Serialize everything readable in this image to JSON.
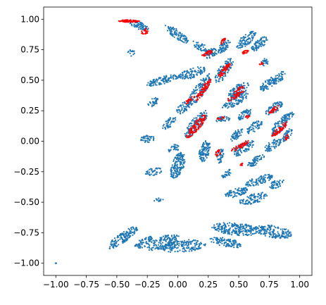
{
  "chart_data": {
    "type": "scatter",
    "title": "",
    "xlabel": "",
    "ylabel": "",
    "xlim": [
      -1.1,
      1.1
    ],
    "ylim": [
      -1.1,
      1.1
    ],
    "grid": false,
    "xticks": [
      -1.0,
      -0.75,
      -0.5,
      -0.25,
      0.0,
      0.25,
      0.5,
      0.75,
      1.0
    ],
    "xtick_labels": [
      "−1.00",
      "−0.75",
      "−0.50",
      "−0.25",
      "0.00",
      "0.25",
      "0.50",
      "0.75",
      "1.00"
    ],
    "yticks": [
      -1.0,
      -0.75,
      -0.5,
      -0.25,
      0.0,
      0.25,
      0.5,
      0.75,
      1.0
    ],
    "ytick_labels": [
      "−1.00",
      "−0.75",
      "−0.50",
      "−0.25",
      "0.00",
      "0.25",
      "0.50",
      "0.75",
      "1.00"
    ],
    "series": [
      {
        "color": "#1f77b4",
        "marker": "dot",
        "clusters": [
          {
            "c": [
              -0.32,
              0.95
            ],
            "a": [
              0.09,
              0.03
            ],
            "ang": -20,
            "n": 70
          },
          {
            "c": [
              -0.01,
              0.88
            ],
            "a": [
              0.12,
              0.035
            ],
            "ang": -35,
            "n": 90
          },
          {
            "c": [
              0.18,
              0.78
            ],
            "a": [
              0.07,
              0.03
            ],
            "ang": -30,
            "n": 40
          },
          {
            "c": [
              -0.38,
              0.72
            ],
            "a": [
              0.03,
              0.03
            ],
            "ang": 0,
            "n": 15
          },
          {
            "c": [
              0.27,
              0.72
            ],
            "a": [
              0.06,
              0.035
            ],
            "ang": 25,
            "n": 60
          },
          {
            "c": [
              0.38,
              0.78
            ],
            "a": [
              0.07,
              0.03
            ],
            "ang": 50,
            "n": 60
          },
          {
            "c": [
              0.56,
              0.83
            ],
            "a": [
              0.1,
              0.04
            ],
            "ang": 40,
            "n": 90
          },
          {
            "c": [
              0.67,
              0.8
            ],
            "a": [
              0.08,
              0.035
            ],
            "ang": 40,
            "n": 70
          },
          {
            "c": [
              0.71,
              0.65
            ],
            "a": [
              0.04,
              0.03
            ],
            "ang": 20,
            "n": 25
          },
          {
            "c": [
              -0.12,
              0.5
            ],
            "a": [
              0.14,
              0.03
            ],
            "ang": 15,
            "n": 110
          },
          {
            "c": [
              0.12,
              0.56
            ],
            "a": [
              0.12,
              0.04
            ],
            "ang": 20,
            "n": 110
          },
          {
            "c": [
              0.38,
              0.58
            ],
            "a": [
              0.12,
              0.045
            ],
            "ang": 55,
            "n": 100
          },
          {
            "c": [
              0.5,
              0.42
            ],
            "a": [
              0.1,
              0.045
            ],
            "ang": 35,
            "n": 90
          },
          {
            "c": [
              0.74,
              0.47
            ],
            "a": [
              0.08,
              0.035
            ],
            "ang": 40,
            "n": 70
          },
          {
            "c": [
              0.83,
              0.52
            ],
            "a": [
              0.07,
              0.03
            ],
            "ang": 45,
            "n": 55
          },
          {
            "c": [
              0.18,
              0.42
            ],
            "a": [
              0.16,
              0.045
            ],
            "ang": 55,
            "n": 150
          },
          {
            "c": [
              -0.2,
              0.32
            ],
            "a": [
              0.05,
              0.03
            ],
            "ang": 30,
            "n": 35
          },
          {
            "c": [
              0.05,
              0.28
            ],
            "a": [
              0.08,
              0.035
            ],
            "ang": 40,
            "n": 60
          },
          {
            "c": [
              0.47,
              0.33
            ],
            "a": [
              0.12,
              0.04
            ],
            "ang": 30,
            "n": 100
          },
          {
            "c": [
              0.37,
              0.18
            ],
            "a": [
              0.06,
              0.025
            ],
            "ang": 10,
            "n": 40
          },
          {
            "c": [
              0.55,
              0.22
            ],
            "a": [
              0.07,
              0.03
            ],
            "ang": 30,
            "n": 50
          },
          {
            "c": [
              0.79,
              0.27
            ],
            "a": [
              0.08,
              0.035
            ],
            "ang": 35,
            "n": 70
          },
          {
            "c": [
              0.9,
              0.2
            ],
            "a": [
              0.06,
              0.025
            ],
            "ang": 30,
            "n": 45
          },
          {
            "c": [
              -0.07,
              0.15
            ],
            "a": [
              0.07,
              0.03
            ],
            "ang": 45,
            "n": 50
          },
          {
            "c": [
              0.15,
              0.14
            ],
            "a": [
              0.14,
              0.045
            ],
            "ang": 50,
            "n": 140
          },
          {
            "c": [
              0.48,
              0.05
            ],
            "a": [
              0.07,
              0.03
            ],
            "ang": 45,
            "n": 50
          },
          {
            "c": [
              0.63,
              0.12
            ],
            "a": [
              0.08,
              0.035
            ],
            "ang": 40,
            "n": 60
          },
          {
            "c": [
              0.83,
              0.12
            ],
            "a": [
              0.09,
              0.04
            ],
            "ang": 45,
            "n": 80
          },
          {
            "c": [
              0.9,
              0.05
            ],
            "a": [
              0.06,
              0.03
            ],
            "ang": 60,
            "n": 40
          },
          {
            "c": [
              -0.25,
              0.02
            ],
            "a": [
              0.06,
              0.03
            ],
            "ang": 0,
            "n": 40
          },
          {
            "c": [
              -0.03,
              -0.06
            ],
            "a": [
              0.05,
              0.03
            ],
            "ang": 30,
            "n": 30
          },
          {
            "c": [
              0.0,
              -0.2
            ],
            "a": [
              0.12,
              0.05
            ],
            "ang": 70,
            "n": 170
          },
          {
            "c": [
              0.22,
              -0.08
            ],
            "a": [
              0.09,
              0.04
            ],
            "ang": 75,
            "n": 110
          },
          {
            "c": [
              0.35,
              -0.12
            ],
            "a": [
              0.06,
              0.03
            ],
            "ang": 80,
            "n": 45
          },
          {
            "c": [
              0.53,
              -0.06
            ],
            "a": [
              0.11,
              0.04
            ],
            "ang": 30,
            "n": 90
          },
          {
            "c": [
              0.64,
              -0.16
            ],
            "a": [
              0.08,
              0.03
            ],
            "ang": 30,
            "n": 55
          },
          {
            "c": [
              0.78,
              -0.03
            ],
            "a": [
              0.08,
              0.035
            ],
            "ang": 35,
            "n": 65
          },
          {
            "c": [
              -0.2,
              -0.25
            ],
            "a": [
              0.07,
              0.03
            ],
            "ang": 10,
            "n": 40
          },
          {
            "c": [
              0.4,
              -0.27
            ],
            "a": [
              0.05,
              0.025
            ],
            "ang": 45,
            "n": 30
          },
          {
            "c": [
              0.67,
              -0.32
            ],
            "a": [
              0.12,
              0.035
            ],
            "ang": 20,
            "n": 90
          },
          {
            "c": [
              0.81,
              -0.35
            ],
            "a": [
              0.07,
              0.03
            ],
            "ang": 20,
            "n": 45
          },
          {
            "c": [
              0.48,
              -0.42
            ],
            "a": [
              0.1,
              0.035
            ],
            "ang": 15,
            "n": 80
          },
          {
            "c": [
              0.62,
              -0.47
            ],
            "a": [
              0.12,
              0.04
            ],
            "ang": 15,
            "n": 90
          },
          {
            "c": [
              -0.16,
              -0.48
            ],
            "a": [
              0.04,
              0.015
            ],
            "ang": 0,
            "n": 15
          },
          {
            "c": [
              -0.45,
              -0.79
            ],
            "a": [
              0.15,
              0.04
            ],
            "ang": 35,
            "n": 150
          },
          {
            "c": [
              -0.28,
              -0.83
            ],
            "a": [
              0.08,
              0.035
            ],
            "ang": 30,
            "n": 70
          },
          {
            "c": [
              -0.12,
              -0.83
            ],
            "a": [
              0.14,
              0.05
            ],
            "ang": 20,
            "n": 140
          },
          {
            "c": [
              0.05,
              -0.86
            ],
            "a": [
              0.18,
              0.05
            ],
            "ang": 5,
            "n": 170
          },
          {
            "c": [
              0.48,
              -0.72
            ],
            "a": [
              0.2,
              0.05
            ],
            "ang": -5,
            "n": 220
          },
          {
            "c": [
              0.78,
              -0.74
            ],
            "a": [
              0.16,
              0.05
            ],
            "ang": -10,
            "n": 160
          },
          {
            "c": [
              0.4,
              -0.83
            ],
            "a": [
              0.14,
              0.035
            ],
            "ang": -10,
            "n": 110
          },
          {
            "c": [
              -1.0,
              -1.0
            ],
            "a": [
              0.005,
              0.003
            ],
            "ang": 0,
            "n": 3
          }
        ]
      },
      {
        "color": "#ff0000",
        "marker": "dot",
        "clusters": [
          {
            "c": [
              -0.4,
              0.985
            ],
            "a": [
              0.09,
              0.01
            ],
            "ang": 0,
            "n": 80
          },
          {
            "c": [
              -0.27,
              0.9
            ],
            "a": [
              0.03,
              0.025
            ],
            "ang": 30,
            "n": 25
          },
          {
            "c": [
              0.24,
              0.72
            ],
            "a": [
              0.045,
              0.015
            ],
            "ang": 25,
            "n": 30
          },
          {
            "c": [
              0.37,
              0.82
            ],
            "a": [
              0.03,
              0.012
            ],
            "ang": 50,
            "n": 18
          },
          {
            "c": [
              0.55,
              0.73
            ],
            "a": [
              0.03,
              0.012
            ],
            "ang": 25,
            "n": 15
          },
          {
            "c": [
              0.68,
              0.64
            ],
            "a": [
              0.02,
              0.012
            ],
            "ang": 0,
            "n": 8
          },
          {
            "c": [
              0.38,
              0.58
            ],
            "a": [
              0.08,
              0.018
            ],
            "ang": 50,
            "n": 50
          },
          {
            "c": [
              0.21,
              0.42
            ],
            "a": [
              0.11,
              0.022
            ],
            "ang": 55,
            "n": 70
          },
          {
            "c": [
              0.1,
              0.34
            ],
            "a": [
              0.05,
              0.015
            ],
            "ang": 40,
            "n": 20
          },
          {
            "c": [
              0.47,
              0.37
            ],
            "a": [
              0.08,
              0.018
            ],
            "ang": 30,
            "n": 40
          },
          {
            "c": [
              0.51,
              0.43
            ],
            "a": [
              0.05,
              0.012
            ],
            "ang": 30,
            "n": 18
          },
          {
            "c": [
              0.35,
              0.19
            ],
            "a": [
              0.03,
              0.012
            ],
            "ang": 10,
            "n": 12
          },
          {
            "c": [
              0.57,
              0.2
            ],
            "a": [
              0.025,
              0.012
            ],
            "ang": 20,
            "n": 10
          },
          {
            "c": [
              0.79,
              0.26
            ],
            "a": [
              0.05,
              0.015
            ],
            "ang": 35,
            "n": 25
          },
          {
            "c": [
              0.15,
              0.12
            ],
            "a": [
              0.12,
              0.03
            ],
            "ang": 50,
            "n": 90
          },
          {
            "c": [
              0.84,
              0.1
            ],
            "a": [
              0.09,
              0.02
            ],
            "ang": 40,
            "n": 55
          },
          {
            "c": [
              0.89,
              0.03
            ],
            "a": [
              0.03,
              0.015
            ],
            "ang": 60,
            "n": 12
          },
          {
            "c": [
              0.51,
              -0.04
            ],
            "a": [
              0.09,
              0.016
            ],
            "ang": 30,
            "n": 45
          },
          {
            "c": [
              0.33,
              -0.1
            ],
            "a": [
              0.03,
              0.02
            ],
            "ang": 70,
            "n": 15
          },
          {
            "c": [
              0.53,
              -0.19
            ],
            "a": [
              0.02,
              0.012
            ],
            "ang": 30,
            "n": 8
          }
        ]
      }
    ]
  }
}
